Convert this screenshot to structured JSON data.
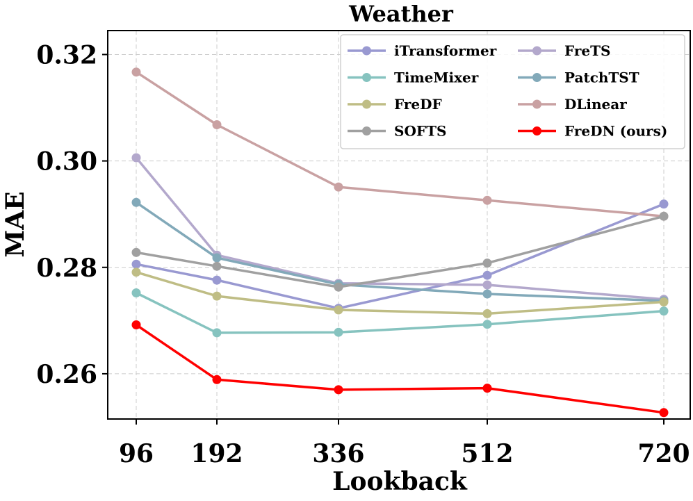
{
  "chart_data": {
    "type": "line",
    "title": "Weather",
    "xlabel": "Lookback",
    "ylabel": "MAE",
    "x": [
      96,
      192,
      336,
      512,
      720
    ],
    "ylim": [
      0.2515,
      0.3245
    ],
    "yticks": [
      0.26,
      0.28,
      0.3,
      0.32
    ],
    "ytick_labels": [
      "0.26",
      "0.28",
      "0.30",
      "0.32"
    ],
    "legend_position": "top-right",
    "grid": true,
    "series": [
      {
        "name": "iTransformer",
        "color": "#9999d1",
        "values": [
          0.2806,
          0.2776,
          0.2723,
          0.2785,
          0.2919
        ]
      },
      {
        "name": "FreTS",
        "color": "#b3a8cc",
        "values": [
          0.3006,
          0.2823,
          0.277,
          0.2767,
          0.274
        ]
      },
      {
        "name": "TimeMixer",
        "color": "#86c3bf",
        "values": [
          0.2752,
          0.2677,
          0.2678,
          0.2693,
          0.2718
        ]
      },
      {
        "name": "PatchTST",
        "color": "#82a9b9",
        "values": [
          0.2922,
          0.2818,
          0.2768,
          0.275,
          0.2737
        ]
      },
      {
        "name": "FreDF",
        "color": "#bfbd85",
        "values": [
          0.2791,
          0.2746,
          0.272,
          0.2713,
          0.2735
        ]
      },
      {
        "name": "DLinear",
        "color": "#c9a1a2",
        "values": [
          0.3167,
          0.3068,
          0.2951,
          0.2926,
          0.2896
        ]
      },
      {
        "name": "SOFTS",
        "color": "#a0a0a0",
        "values": [
          0.2828,
          0.2802,
          0.2763,
          0.2808,
          0.2896
        ]
      },
      {
        "name": "FreDN (ours)",
        "color": "#ff0000",
        "values": [
          0.2692,
          0.2589,
          0.257,
          0.2573,
          0.2527
        ]
      }
    ]
  }
}
